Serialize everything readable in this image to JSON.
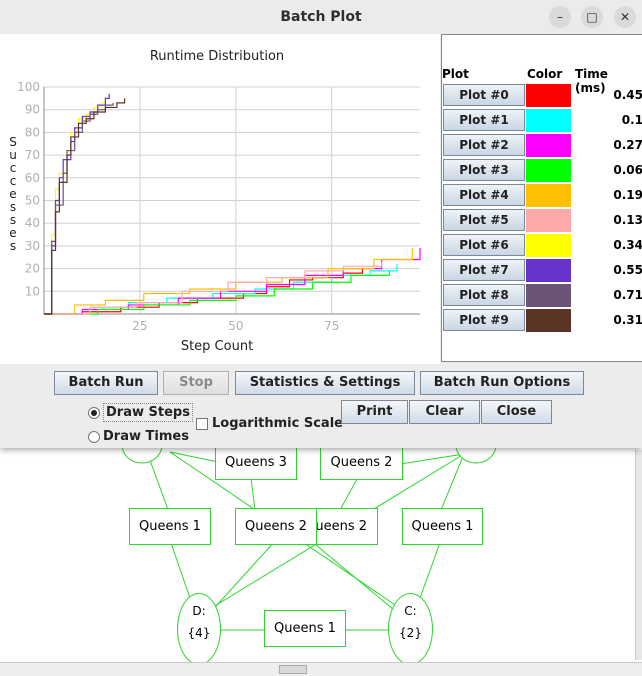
{
  "background_graph": {
    "nodes": {
      "queens3_top": "Queens 3",
      "queens2_top": "Queens 2",
      "queens1_left": "Queens 1",
      "queens2_mid": "Queens 2",
      "queens2_behind": "ueens 2",
      "queens1_right": "Queens 1",
      "d_label": "D:",
      "d_value": "{4}",
      "c_label": "C:",
      "c_value": "{2}",
      "queens1_bottom": "Queens 1"
    },
    "edge_color": "#2bd52b"
  },
  "dialog": {
    "title": "Batch Plot",
    "window_controls": {
      "minimize": "–",
      "maximize": "□",
      "close": "✕"
    }
  },
  "chart_data": {
    "type": "line",
    "title": "Runtime Distribution",
    "xlabel": "Step Count",
    "ylabel": "S u c c e s s e s",
    "x_ticks": [
      "25",
      "50",
      "75"
    ],
    "y_ticks": [
      "10",
      "20",
      "30",
      "40",
      "50",
      "60",
      "70",
      "80",
      "90",
      "100"
    ],
    "xlim": [
      0,
      98
    ],
    "ylim": [
      0,
      100
    ],
    "grid": true,
    "series": [
      {
        "name": "Plot #0",
        "color": "#ff0000",
        "points": [
          [
            0,
            0
          ],
          [
            10,
            1
          ],
          [
            20,
            3
          ],
          [
            30,
            5
          ],
          [
            40,
            7
          ],
          [
            52,
            9
          ],
          [
            58,
            12
          ],
          [
            64,
            15
          ],
          [
            70,
            16
          ],
          [
            78,
            18
          ],
          [
            83,
            20
          ]
        ]
      },
      {
        "name": "Plot #1",
        "color": "#00ffff",
        "points": [
          [
            0,
            0
          ],
          [
            12,
            3
          ],
          [
            22,
            5
          ],
          [
            32,
            7
          ],
          [
            44,
            9
          ],
          [
            55,
            11
          ],
          [
            65,
            14
          ],
          [
            75,
            17
          ],
          [
            85,
            19
          ],
          [
            92,
            22
          ]
        ]
      },
      {
        "name": "Plot #2",
        "color": "#ff00ff",
        "points": [
          [
            0,
            0
          ],
          [
            10,
            2
          ],
          [
            22,
            4
          ],
          [
            35,
            7
          ],
          [
            46,
            10
          ],
          [
            58,
            13
          ],
          [
            68,
            17
          ],
          [
            78,
            20
          ],
          [
            88,
            24
          ],
          [
            98,
            29
          ]
        ]
      },
      {
        "name": "Plot #3",
        "color": "#00ff00",
        "points": [
          [
            0,
            0
          ],
          [
            14,
            2
          ],
          [
            26,
            4
          ],
          [
            38,
            6
          ],
          [
            50,
            8
          ],
          [
            60,
            11
          ],
          [
            70,
            14
          ],
          [
            80,
            17
          ],
          [
            90,
            19
          ]
        ]
      },
      {
        "name": "Plot #4",
        "color": "#ffc000",
        "points": [
          [
            0,
            0
          ],
          [
            8,
            4
          ],
          [
            16,
            6
          ],
          [
            26,
            9
          ],
          [
            38,
            11
          ],
          [
            50,
            14
          ],
          [
            62,
            16
          ],
          [
            74,
            20
          ],
          [
            86,
            24
          ],
          [
            96,
            29
          ]
        ]
      },
      {
        "name": "Plot #5",
        "color": "#ffaaaa",
        "points": [
          [
            0,
            0
          ],
          [
            12,
            3
          ],
          [
            24,
            5
          ],
          [
            36,
            10
          ],
          [
            48,
            14
          ],
          [
            58,
            16
          ],
          [
            68,
            19
          ],
          [
            78,
            21
          ],
          [
            88,
            23
          ]
        ]
      },
      {
        "name": "Plot #6",
        "color": "#ffff00",
        "points": [
          [
            0,
            0
          ],
          [
            2,
            35
          ],
          [
            3,
            55
          ],
          [
            4,
            62
          ],
          [
            6,
            72
          ],
          [
            7,
            80
          ],
          [
            9,
            86
          ],
          [
            11,
            88
          ],
          [
            13,
            91
          ],
          [
            15,
            93
          ],
          [
            16,
            95
          ]
        ]
      },
      {
        "name": "Plot #7",
        "color": "#6633cc",
        "points": [
          [
            0,
            0
          ],
          [
            2,
            30
          ],
          [
            3,
            50
          ],
          [
            4,
            60
          ],
          [
            5,
            68
          ],
          [
            7,
            76
          ],
          [
            8,
            82
          ],
          [
            10,
            87
          ],
          [
            12,
            89
          ],
          [
            14,
            92
          ],
          [
            16,
            95
          ],
          [
            17,
            97
          ]
        ]
      },
      {
        "name": "Plot #8",
        "color": "#6b5577",
        "points": [
          [
            0,
            0
          ],
          [
            2,
            32
          ],
          [
            3,
            48
          ],
          [
            5,
            62
          ],
          [
            6,
            72
          ],
          [
            8,
            80
          ],
          [
            10,
            85
          ],
          [
            12,
            88
          ],
          [
            14,
            90
          ],
          [
            16,
            92
          ],
          [
            18,
            93
          ]
        ]
      },
      {
        "name": "Plot #9",
        "color": "#5a3424",
        "points": [
          [
            0,
            0
          ],
          [
            2,
            28
          ],
          [
            3,
            45
          ],
          [
            4,
            58
          ],
          [
            6,
            70
          ],
          [
            7,
            78
          ],
          [
            9,
            84
          ],
          [
            11,
            86
          ],
          [
            13,
            89
          ],
          [
            16,
            91
          ],
          [
            19,
            93
          ],
          [
            21,
            95
          ]
        ]
      }
    ]
  },
  "legend": {
    "headers": {
      "plot": "Plot",
      "color": "Color",
      "time": "Time (ms)"
    },
    "rows": [
      {
        "label": "Plot #0",
        "color": "#ff0000",
        "time": "0.45"
      },
      {
        "label": "Plot #1",
        "color": "#00ffff",
        "time": "0.1"
      },
      {
        "label": "Plot #2",
        "color": "#ff00ff",
        "time": "0.27"
      },
      {
        "label": "Plot #3",
        "color": "#00ff00",
        "time": "0.06"
      },
      {
        "label": "Plot #4",
        "color": "#ffc000",
        "time": "0.19"
      },
      {
        "label": "Plot #5",
        "color": "#ffaaaa",
        "time": "0.13"
      },
      {
        "label": "Plot #6",
        "color": "#ffff00",
        "time": "0.34"
      },
      {
        "label": "Plot #7",
        "color": "#6633cc",
        "time": "0.55"
      },
      {
        "label": "Plot #8",
        "color": "#6b5577",
        "time": "0.71"
      },
      {
        "label": "Plot #9",
        "color": "#5a3424",
        "time": "0.31"
      }
    ]
  },
  "controls": {
    "batch_run": "Batch Run",
    "stop": "Stop",
    "statistics_settings": "Statistics & Settings",
    "batch_run_options": "Batch Run Options",
    "draw_steps": "Draw Steps",
    "draw_times": "Draw Times",
    "log_scale": "Logarithmic Scale",
    "print": "Print",
    "clear": "Clear",
    "close": "Close"
  }
}
